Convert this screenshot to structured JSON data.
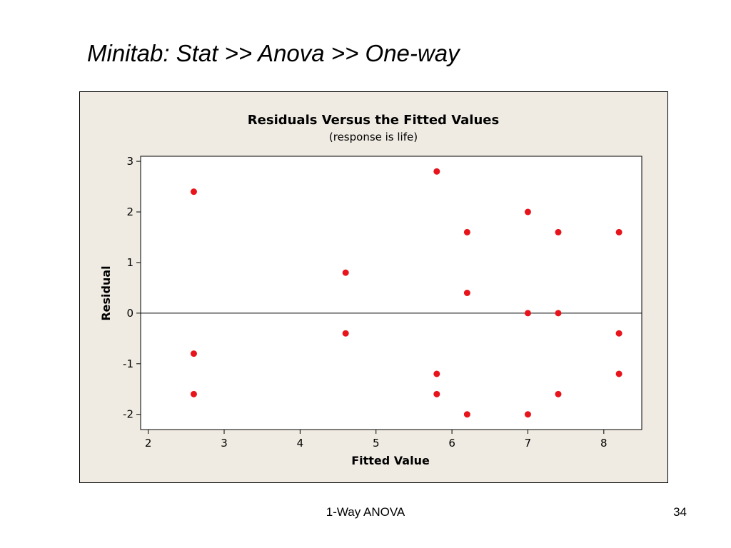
{
  "slide": {
    "title": "Minitab: Stat >> Anova >> One-way",
    "footer": "1-Way ANOVA",
    "page_number": "34"
  },
  "chart_data": {
    "type": "scatter",
    "title": "Residuals Versus the Fitted Values",
    "subtitle": "(response is life)",
    "xlabel": "Fitted Value",
    "ylabel": "Residual",
    "xlim": [
      1.9,
      8.5
    ],
    "ylim": [
      -2.3,
      3.1
    ],
    "xticks": [
      2,
      3,
      4,
      5,
      6,
      7,
      8
    ],
    "yticks": [
      3,
      2,
      1,
      0,
      -1,
      -2
    ],
    "reference_line_y": 0,
    "grid": false,
    "marker_color": "#e8141c",
    "points": [
      {
        "x": 2.6,
        "y": 2.4
      },
      {
        "x": 2.6,
        "y": -0.8
      },
      {
        "x": 2.6,
        "y": -1.6
      },
      {
        "x": 4.6,
        "y": 0.8
      },
      {
        "x": 4.6,
        "y": -0.4
      },
      {
        "x": 5.8,
        "y": 2.8
      },
      {
        "x": 5.8,
        "y": -1.2
      },
      {
        "x": 5.8,
        "y": -1.6
      },
      {
        "x": 6.2,
        "y": 1.6
      },
      {
        "x": 6.2,
        "y": 0.4
      },
      {
        "x": 6.2,
        "y": -2.0
      },
      {
        "x": 7.0,
        "y": 2.0
      },
      {
        "x": 7.0,
        "y": 0.0
      },
      {
        "x": 7.0,
        "y": -2.0
      },
      {
        "x": 7.4,
        "y": 1.6
      },
      {
        "x": 7.4,
        "y": 0.0
      },
      {
        "x": 7.4,
        "y": -1.6
      },
      {
        "x": 8.2,
        "y": 1.6
      },
      {
        "x": 8.2,
        "y": -0.4
      },
      {
        "x": 8.2,
        "y": -1.2
      }
    ]
  }
}
